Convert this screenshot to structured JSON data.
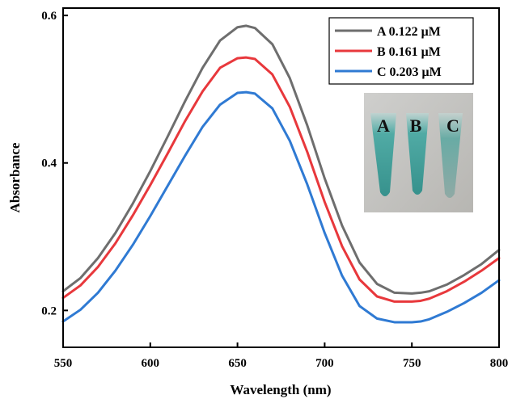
{
  "chart_data": {
    "type": "line",
    "xlabel": "Wavelength (nm)",
    "ylabel": "Absorbance",
    "xlim": [
      550,
      800
    ],
    "ylim": [
      0.15,
      0.61
    ],
    "xticks": [
      550,
      600,
      650,
      700,
      750,
      800
    ],
    "xtick_labels": [
      "550",
      "600",
      "650",
      "700",
      "750",
      "800"
    ],
    "yticks": [
      0.2,
      0.4,
      0.6
    ],
    "ytick_labels": [
      "0.2",
      "0.4",
      "0.6"
    ],
    "grid": false,
    "legend_position": "top-right",
    "x": [
      550,
      560,
      570,
      580,
      590,
      600,
      610,
      620,
      630,
      640,
      650,
      655,
      660,
      670,
      680,
      690,
      700,
      710,
      720,
      730,
      740,
      750,
      755,
      760,
      770,
      780,
      790,
      800
    ],
    "series": [
      {
        "name": "A 0.122 μM",
        "color": "#6e6e6e",
        "values": [
          0.226,
          0.244,
          0.271,
          0.305,
          0.345,
          0.389,
          0.436,
          0.484,
          0.529,
          0.566,
          0.584,
          0.586,
          0.583,
          0.561,
          0.515,
          0.451,
          0.379,
          0.315,
          0.265,
          0.236,
          0.224,
          0.223,
          0.224,
          0.226,
          0.235,
          0.248,
          0.263,
          0.282
        ]
      },
      {
        "name": "B 0.161 μM",
        "color": "#e8383c",
        "values": [
          0.217,
          0.234,
          0.259,
          0.291,
          0.329,
          0.37,
          0.413,
          0.457,
          0.497,
          0.529,
          0.542,
          0.543,
          0.541,
          0.52,
          0.476,
          0.415,
          0.347,
          0.287,
          0.242,
          0.219,
          0.212,
          0.212,
          0.213,
          0.216,
          0.226,
          0.239,
          0.254,
          0.271
        ]
      },
      {
        "name": "C 0.203 μM",
        "color": "#2f7ad3",
        "values": [
          0.185,
          0.201,
          0.224,
          0.254,
          0.289,
          0.328,
          0.369,
          0.41,
          0.449,
          0.479,
          0.495,
          0.496,
          0.494,
          0.474,
          0.43,
          0.371,
          0.305,
          0.247,
          0.206,
          0.189,
          0.184,
          0.184,
          0.185,
          0.188,
          0.198,
          0.21,
          0.224,
          0.241
        ]
      }
    ],
    "inset": {
      "description_labels": [
        "A",
        "B",
        "C"
      ],
      "tube_color": "#3aa5a0"
    }
  }
}
